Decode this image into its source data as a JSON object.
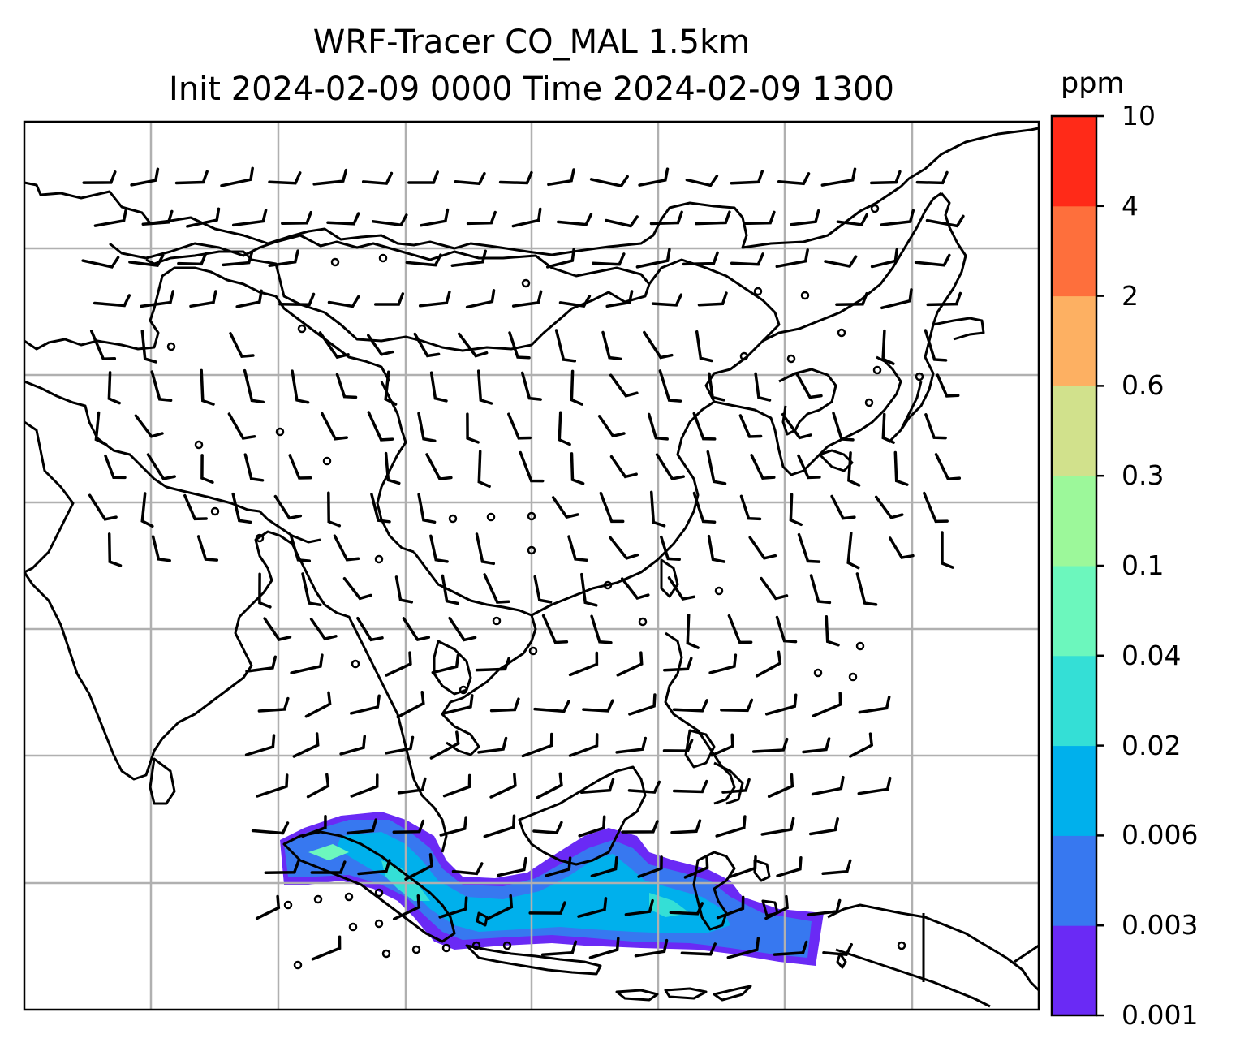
{
  "title_line1": "WRF-Tracer CO_MAL 1.5km",
  "title_line2": "Init 2024-02-09 0000 Time 2024-02-09 1300",
  "colorbar": {
    "unit": "ppm",
    "levels": [
      "0.001",
      "0.003",
      "0.006",
      "0.02",
      "0.04",
      "0.1",
      "0.3",
      "0.6",
      "2",
      "4",
      "10"
    ],
    "colors": [
      "#6a2af5",
      "#3778f0",
      "#00b0ec",
      "#34dfd6",
      "#6cf7bd",
      "#9cf89a",
      "#d1e18c",
      "#fdb062",
      "#fe6f3c",
      "#ff2a18"
    ]
  },
  "map": {
    "gridline_color": "#b0b0b0",
    "coastline_color": "#000000",
    "wind_barb_color": "#000000",
    "plume_colors": [
      "#6a2af5",
      "#3778f0",
      "#00b0ec",
      "#34dfd6",
      "#6cf7bd"
    ]
  }
}
